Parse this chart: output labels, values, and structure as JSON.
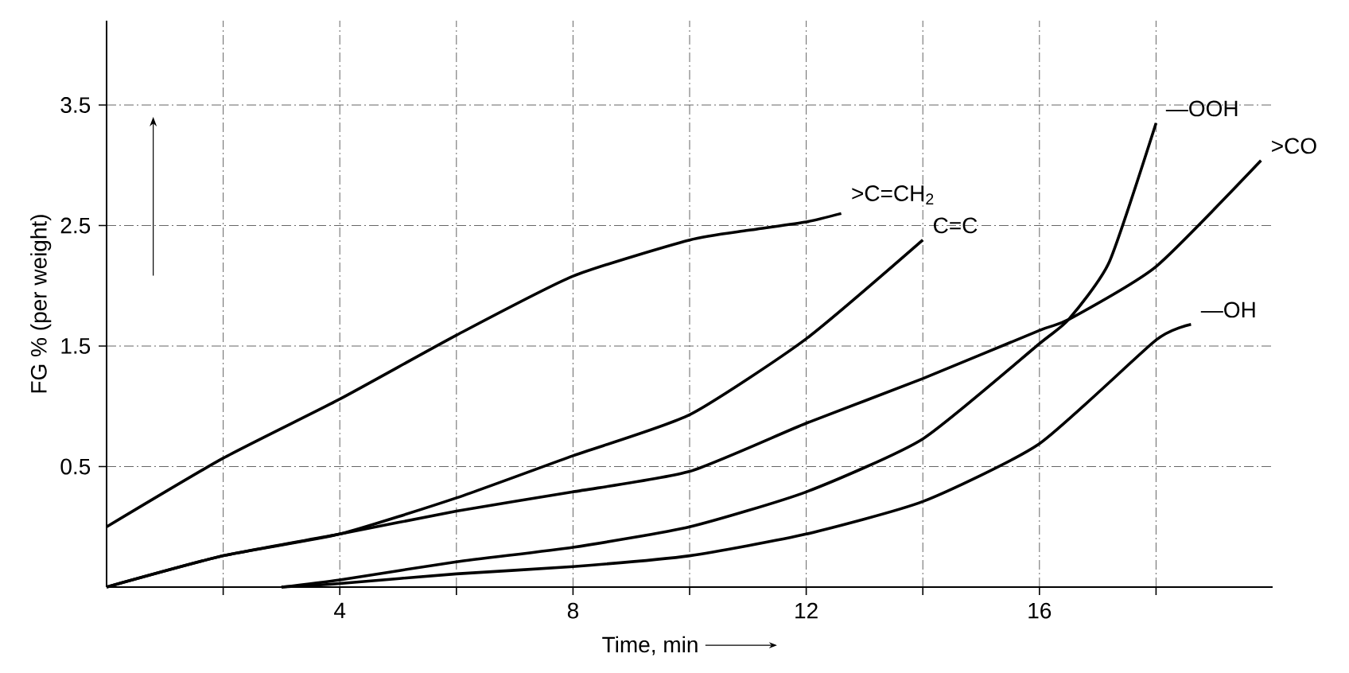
{
  "chart_data": {
    "type": "line",
    "xlabel": "Time, min",
    "ylabel": "FG % (per weight)",
    "xlim": [
      0,
      20
    ],
    "ylim": [
      -0.5,
      4.2
    ],
    "xticks": [
      {
        "value": 2,
        "label": null
      },
      4,
      {
        "value": 6,
        "label": null
      },
      8,
      {
        "value": 10,
        "label": null
      },
      12,
      {
        "value": 14,
        "label": null
      },
      16,
      {
        "value": 18,
        "label": null
      }
    ],
    "yticks": [
      0.5,
      1.5,
      2.5,
      3.5
    ],
    "grid": true,
    "marker": "none",
    "line_style": "solid",
    "series": [
      {
        "color": "#000000",
        "x": [
          0,
          2,
          4,
          6,
          8,
          10,
          11,
          12,
          12.6
        ],
        "values": [
          0,
          0.57,
          1.06,
          1.59,
          2.08,
          2.38,
          2.46,
          2.53,
          2.6
        ]
      },
      {
        "color": "#000000",
        "x": [
          0,
          2,
          4,
          6,
          8,
          10,
          12,
          14
        ],
        "values": [
          -0.5,
          -0.24,
          -0.06,
          0.24,
          0.59,
          0.93,
          1.56,
          2.38
        ]
      },
      {
        "color": "#000000",
        "x": [
          3,
          4,
          6,
          8,
          10,
          12,
          14,
          16,
          16.5,
          17.2,
          18
        ],
        "values": [
          -0.5,
          -0.44,
          -0.29,
          -0.17,
          0,
          0.29,
          0.73,
          1.52,
          1.72,
          2.2,
          3.35
        ]
      },
      {
        "color": "#000000",
        "x": [
          0,
          2,
          4,
          6,
          8,
          10,
          12,
          14,
          16,
          16.5,
          18,
          19.8
        ],
        "values": [
          -0.5,
          -0.24,
          -0.06,
          0.13,
          0.29,
          0.46,
          0.86,
          1.23,
          1.63,
          1.72,
          2.16,
          3.04
        ]
      },
      {
        "color": "#000000",
        "x": [
          3,
          4,
          6,
          8,
          10,
          12,
          14,
          16,
          18,
          18.6
        ],
        "values": [
          -0.5,
          -0.47,
          -0.39,
          -0.33,
          -0.24,
          -0.06,
          0.21,
          0.69,
          1.55,
          1.68
        ]
      }
    ],
    "annotations": [
      {
        "text": ">C=CH$_{2}$",
        "x": 12.6,
        "y": 2.62
      },
      {
        "text": "C=C",
        "x": 14,
        "y": 2.38
      },
      {
        "text": "—OOH",
        "x": 18,
        "y": 3.35
      },
      {
        "text": ">CO",
        "x": 19.8,
        "y": 3.04
      },
      {
        "text": "—OH",
        "x": 18.6,
        "y": 1.68
      }
    ]
  }
}
